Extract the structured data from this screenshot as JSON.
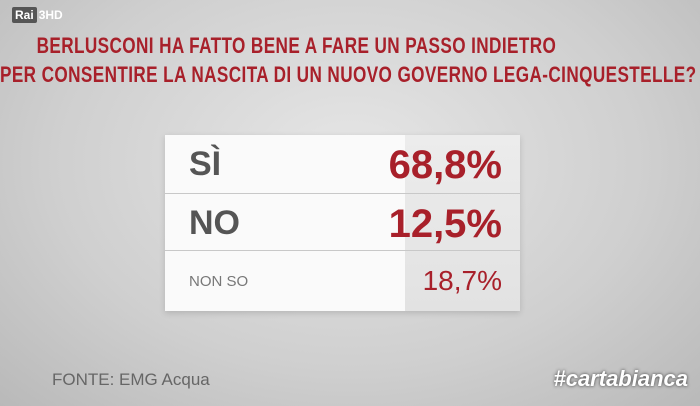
{
  "logo": {
    "name": "Rai",
    "channel": "3HD"
  },
  "title": {
    "lines": [
      "BERLUSCONI HA FATTO BENE A FARE UN PASSO INDIETRO",
      "PER CONSENTIRE LA NASCITA DI UN NUOVO GOVERNO LEGA-CINQUESTELLE?"
    ]
  },
  "table": {
    "rows": [
      [
        "SÌ",
        "68,8%"
      ],
      [
        "NO",
        "12,5%"
      ],
      [
        "NON SO",
        "18,7%"
      ]
    ]
  },
  "footer": {
    "source": "FONTE: EMG Acqua",
    "hashtag": "#cartabianca"
  }
}
